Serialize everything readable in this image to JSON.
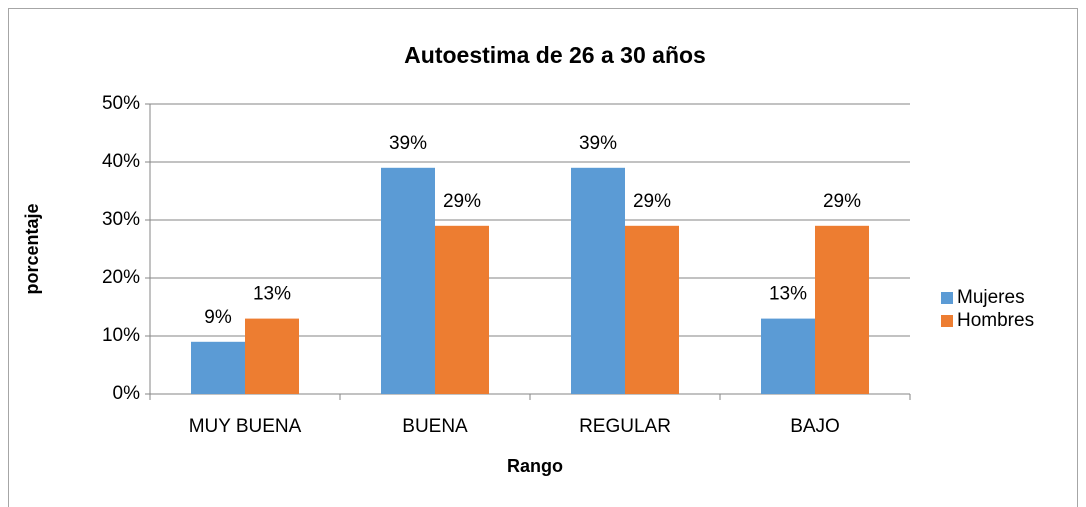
{
  "chart_data": {
    "type": "bar",
    "title": "Autoestima de 26 a 30 años",
    "x_label": "Rango",
    "y_label": "porcentaje",
    "categories": [
      "MUY BUENA",
      "BUENA",
      "REGULAR",
      "BAJO"
    ],
    "series": [
      {
        "name": "Mujeres",
        "color": "#5b9bd5",
        "values": [
          9,
          39,
          39,
          13
        ],
        "value_labels": [
          "9%",
          "39%",
          "39%",
          "13%"
        ]
      },
      {
        "name": "Hombres",
        "color": "#ed7d31",
        "values": [
          13,
          29,
          29,
          29
        ],
        "value_labels": [
          "13%",
          "29%",
          "29%",
          "29%"
        ]
      }
    ],
    "ylim": [
      0,
      50
    ],
    "yticks": [
      {
        "value": 0,
        "label": "0%"
      },
      {
        "value": 10,
        "label": "10%"
      },
      {
        "value": 20,
        "label": "20%"
      },
      {
        "value": 30,
        "label": "30%"
      },
      {
        "value": 40,
        "label": "40%"
      },
      {
        "value": 50,
        "label": "50%"
      }
    ],
    "grid": true,
    "legend": "right"
  }
}
